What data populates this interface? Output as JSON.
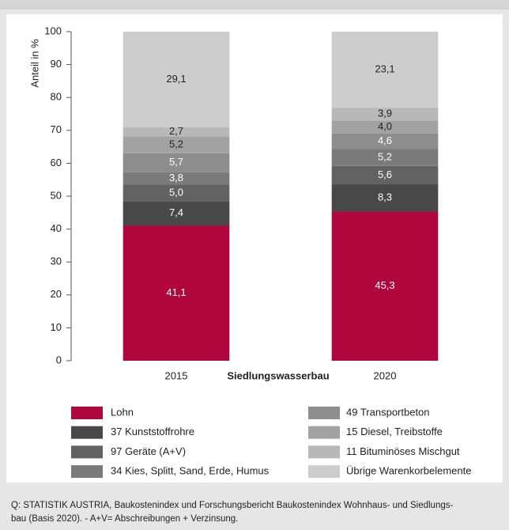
{
  "chart_data": {
    "type": "stacked_bar",
    "categories": [
      "2015",
      "2020"
    ],
    "xlabel": "Siedlungswasserbau",
    "ylabel": "Anteil in %",
    "ylim": [
      0,
      100
    ],
    "yticks": [
      0,
      10,
      20,
      30,
      40,
      50,
      60,
      70,
      80,
      90,
      100
    ],
    "grid": false,
    "series": [
      {
        "name": "Lohn",
        "color": "#b0063e",
        "values": [
          41.1,
          45.3
        ],
        "value_labels": [
          "41,1",
          "45,3"
        ]
      },
      {
        "name": "37 Kunststoffrohre",
        "color": "#484848",
        "values": [
          7.4,
          8.3
        ],
        "value_labels": [
          "7,4",
          "8,3"
        ]
      },
      {
        "name": "97 Geräte (A+V)",
        "color": "#626262",
        "values": [
          5.0,
          5.6
        ],
        "value_labels": [
          "5,0",
          "5,6"
        ]
      },
      {
        "name": "34 Kies, Splitt, Sand, Erde, Humus",
        "color": "#7a7a7a",
        "values": [
          3.8,
          5.2
        ],
        "value_labels": [
          "3,8",
          "5,2"
        ]
      },
      {
        "name": "49 Transportbeton",
        "color": "#8d8d8d",
        "values": [
          5.7,
          4.6
        ],
        "value_labels": [
          "5,7",
          "4,6"
        ]
      },
      {
        "name": "15 Diesel, Treibstoffe",
        "color": "#a2a2a2",
        "values": [
          5.2,
          4.0
        ],
        "value_labels": [
          "5,2",
          "4,0"
        ]
      },
      {
        "name": "11 Bituminöses Mischgut",
        "color": "#b8b8b8",
        "values": [
          2.7,
          3.9
        ],
        "value_labels": [
          "2,7",
          "3,9"
        ]
      },
      {
        "name": "Übrige Warenkorbelemente",
        "color": "#cdcdcd",
        "values": [
          29.1,
          23.1
        ],
        "value_labels": [
          "29,1",
          "23,1"
        ]
      }
    ],
    "source": [
      "Q: STATISTIK AUSTRIA, Baukostenindex und Forschungsbericht Baukostenindex Wohnhaus- und Siedlungs-",
      "bau (Basis 2020). - A+V= Abschreibungen + Verzinsung."
    ]
  }
}
